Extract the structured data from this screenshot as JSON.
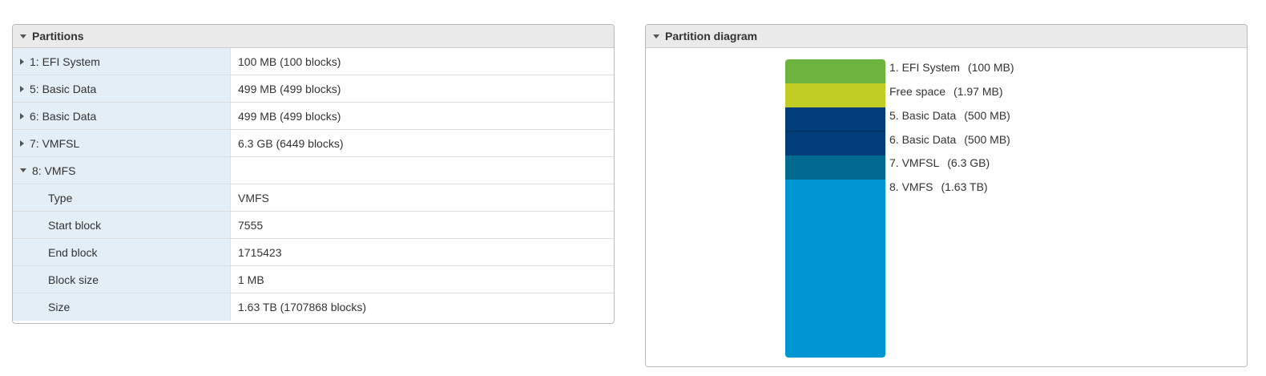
{
  "partitions_panel": {
    "title": "Partitions",
    "rows": [
      {
        "label": "1: EFI System",
        "value": "100 MB (100 blocks)",
        "expanded": false
      },
      {
        "label": "5: Basic Data",
        "value": "499 MB (499 blocks)",
        "expanded": false
      },
      {
        "label": "6: Basic Data",
        "value": "499 MB (499 blocks)",
        "expanded": false
      },
      {
        "label": "7: VMFSL",
        "value": "6.3 GB (6449 blocks)",
        "expanded": false
      },
      {
        "label": "8: VMFS",
        "value": "",
        "expanded": true
      }
    ],
    "vmfs_details": [
      {
        "label": "Type",
        "value": "VMFS"
      },
      {
        "label": "Start block",
        "value": "7555"
      },
      {
        "label": "End block",
        "value": "1715423"
      },
      {
        "label": "Block size",
        "value": "1 MB"
      },
      {
        "label": "Size",
        "value": "1.63 TB (1707868 blocks)"
      }
    ]
  },
  "diagram_panel": {
    "title": "Partition diagram",
    "segments": [
      {
        "name": "1. EFI System",
        "size": "(100 MB)",
        "color": "#6db33f"
      },
      {
        "name": "Free space",
        "size": "(1.97 MB)",
        "color": "#c2cd23"
      },
      {
        "name": "5. Basic Data",
        "size": "(500 MB)",
        "color": "#003d79"
      },
      {
        "name": "6. Basic Data",
        "size": "(500 MB)",
        "color": "#003d79"
      },
      {
        "name": "7. VMFSL",
        "size": "(6.3 GB)",
        "color": "#006a91"
      },
      {
        "name": "8. VMFS",
        "size": "(1.63 TB)",
        "color": "#0095d3"
      }
    ]
  }
}
